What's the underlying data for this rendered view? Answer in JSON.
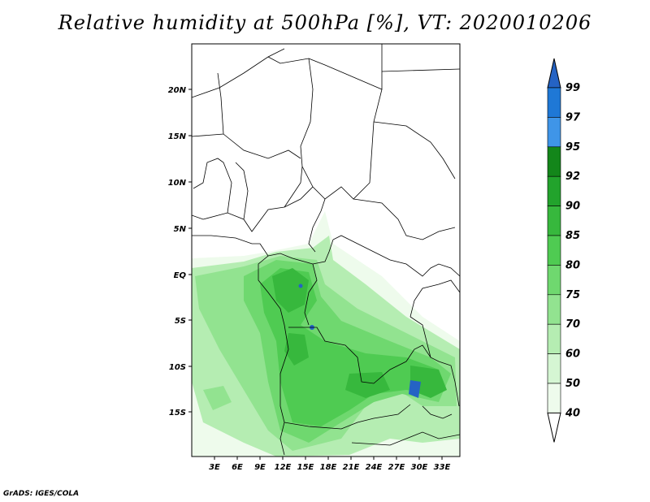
{
  "title": "Relative humidity at 500hPa [%], VT: 2020010206",
  "credit": "GrADS: IGES/COLA",
  "lat_labels": [
    "20N",
    "15N",
    "10N",
    "5N",
    "EQ",
    "5S",
    "10S",
    "15S"
  ],
  "lon_labels": [
    "3E",
    "6E",
    "9E",
    "12E",
    "15E",
    "18E",
    "21E",
    "24E",
    "27E",
    "30E",
    "33E"
  ],
  "colorbar": {
    "levels": [
      "99",
      "97",
      "95",
      "92",
      "90",
      "85",
      "80",
      "75",
      "70",
      "60",
      "50",
      "40"
    ],
    "colors": [
      "#2563c4",
      "#1f78d6",
      "#3f95e8",
      "#13861a",
      "#22a32c",
      "#37b83d",
      "#4fcb52",
      "#6fd86f",
      "#92e390",
      "#b5edb2",
      "#d5f6d3",
      "#eefbec"
    ]
  }
}
